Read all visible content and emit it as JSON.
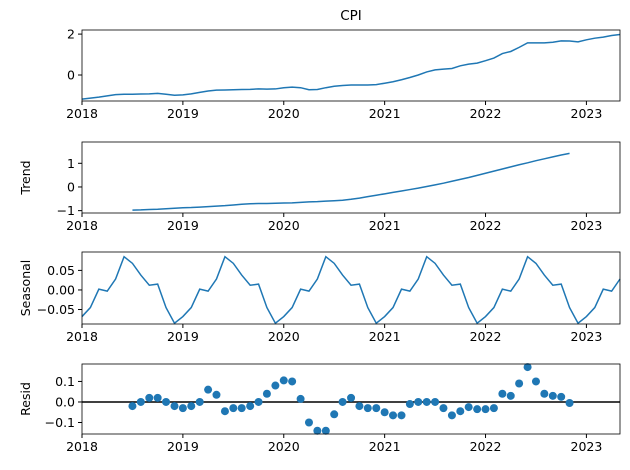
{
  "chart_data": [
    {
      "type": "line",
      "title": "CPI",
      "color": "#1f77b4",
      "x": [
        2018,
        2018.083,
        2018.167,
        2018.25,
        2018.333,
        2018.417,
        2018.5,
        2018.583,
        2018.667,
        2018.75,
        2018.833,
        2018.917,
        2019,
        2019.083,
        2019.167,
        2019.25,
        2019.333,
        2019.417,
        2019.5,
        2019.583,
        2019.667,
        2019.75,
        2019.833,
        2019.917,
        2020,
        2020.083,
        2020.167,
        2020.25,
        2020.333,
        2020.417,
        2020.5,
        2020.583,
        2020.667,
        2020.75,
        2020.833,
        2020.917,
        2021,
        2021.083,
        2021.167,
        2021.25,
        2021.333,
        2021.417,
        2021.5,
        2021.583,
        2021.667,
        2021.75,
        2021.833,
        2021.917,
        2022,
        2022.083,
        2022.167,
        2022.25,
        2022.333,
        2022.417,
        2022.5,
        2022.583,
        2022.667,
        2022.75,
        2022.833,
        2022.917,
        2023,
        2023.083,
        2023.167,
        2023.25,
        2023.333
      ],
      "values": [
        -1.18,
        -1.13,
        -1.08,
        -1.02,
        -0.96,
        -0.94,
        -0.94,
        -0.93,
        -0.92,
        -0.9,
        -0.94,
        -0.99,
        -0.97,
        -0.92,
        -0.85,
        -0.78,
        -0.74,
        -0.73,
        -0.72,
        -0.71,
        -0.7,
        -0.68,
        -0.69,
        -0.68,
        -0.62,
        -0.59,
        -0.62,
        -0.72,
        -0.71,
        -0.62,
        -0.55,
        -0.51,
        -0.49,
        -0.49,
        -0.49,
        -0.47,
        -0.4,
        -0.33,
        -0.23,
        -0.12,
        0,
        0.15,
        0.25,
        0.29,
        0.32,
        0.45,
        0.53,
        0.58,
        0.7,
        0.83,
        1.05,
        1.15,
        1.35,
        1.57,
        1.57,
        1.57,
        1.6,
        1.67,
        1.66,
        1.62,
        1.72,
        1.8,
        1.85,
        1.93,
        1.98
      ],
      "xlim": [
        2018,
        2023.333
      ],
      "xticks": [
        2018,
        2019,
        2020,
        2021,
        2022,
        2023
      ],
      "ylim": [
        -1.27,
        2.2
      ],
      "yticks": [
        0,
        2
      ]
    },
    {
      "type": "line",
      "ylabel": "Trend",
      "color": "#1f77b4",
      "x": [
        2018.5,
        2018.583,
        2018.667,
        2018.75,
        2018.833,
        2018.917,
        2019,
        2019.083,
        2019.167,
        2019.25,
        2019.333,
        2019.417,
        2019.5,
        2019.583,
        2019.667,
        2019.75,
        2019.833,
        2019.917,
        2020,
        2020.083,
        2020.167,
        2020.25,
        2020.333,
        2020.417,
        2020.5,
        2020.583,
        2020.667,
        2020.75,
        2020.833,
        2020.917,
        2021,
        2021.083,
        2021.167,
        2021.25,
        2021.333,
        2021.417,
        2021.5,
        2021.583,
        2021.667,
        2021.75,
        2021.833,
        2021.917,
        2022,
        2022.083,
        2022.167,
        2022.25,
        2022.333,
        2022.417,
        2022.5,
        2022.583,
        2022.667,
        2022.75,
        2022.833
      ],
      "values": [
        -0.98,
        -0.97,
        -0.95,
        -0.94,
        -0.92,
        -0.9,
        -0.88,
        -0.87,
        -0.85,
        -0.83,
        -0.81,
        -0.79,
        -0.76,
        -0.73,
        -0.71,
        -0.7,
        -0.7,
        -0.69,
        -0.68,
        -0.67,
        -0.65,
        -0.63,
        -0.62,
        -0.6,
        -0.58,
        -0.56,
        -0.52,
        -0.47,
        -0.41,
        -0.35,
        -0.29,
        -0.23,
        -0.17,
        -0.11,
        -0.05,
        0.02,
        0.09,
        0.16,
        0.24,
        0.32,
        0.4,
        0.49,
        0.58,
        0.67,
        0.76,
        0.85,
        0.94,
        1.02,
        1.11,
        1.19,
        1.27,
        1.35,
        1.42
      ],
      "xlim": [
        2018,
        2023.333
      ],
      "xticks": [
        2018,
        2019,
        2020,
        2021,
        2022,
        2023
      ],
      "ylim": [
        -1.1,
        1.9
      ],
      "yticks": [
        {
          "value": -1,
          "label": "−1"
        },
        0,
        1
      ]
    },
    {
      "type": "line",
      "ylabel": "Seasonal",
      "color": "#1f77b4",
      "x": [
        2018,
        2018.083,
        2018.167,
        2018.25,
        2018.333,
        2018.417,
        2018.5,
        2018.583,
        2018.667,
        2018.75,
        2018.833,
        2018.917,
        2019,
        2019.083,
        2019.167,
        2019.25,
        2019.333,
        2019.417,
        2019.5,
        2019.583,
        2019.667,
        2019.75,
        2019.833,
        2019.917,
        2020,
        2020.083,
        2020.167,
        2020.25,
        2020.333,
        2020.417,
        2020.5,
        2020.583,
        2020.667,
        2020.75,
        2020.833,
        2020.917,
        2021,
        2021.083,
        2021.167,
        2021.25,
        2021.333,
        2021.417,
        2021.5,
        2021.583,
        2021.667,
        2021.75,
        2021.833,
        2021.917,
        2022,
        2022.083,
        2022.167,
        2022.25,
        2022.333,
        2022.417,
        2022.5,
        2022.583,
        2022.667,
        2022.75,
        2022.833,
        2022.917,
        2023,
        2023.083,
        2023.167,
        2023.25,
        2023.333
      ],
      "values": [
        -0.068,
        -0.045,
        0.002,
        -0.003,
        0.028,
        0.085,
        0.068,
        0.038,
        0.012,
        0.015,
        -0.045,
        -0.085,
        -0.068,
        -0.045,
        0.002,
        -0.003,
        0.028,
        0.085,
        0.068,
        0.038,
        0.012,
        0.015,
        -0.045,
        -0.085,
        -0.068,
        -0.045,
        0.002,
        -0.003,
        0.028,
        0.085,
        0.068,
        0.038,
        0.012,
        0.015,
        -0.045,
        -0.085,
        -0.068,
        -0.045,
        0.002,
        -0.003,
        0.028,
        0.085,
        0.068,
        0.038,
        0.012,
        0.015,
        -0.045,
        -0.085,
        -0.068,
        -0.045,
        0.002,
        -0.003,
        0.028,
        0.085,
        0.068,
        0.038,
        0.012,
        0.015,
        -0.045,
        -0.085,
        -0.068,
        -0.045,
        0.002,
        -0.003,
        0.028
      ],
      "xlim": [
        2018,
        2023.333
      ],
      "xticks": [
        2018,
        2019,
        2020,
        2021,
        2022,
        2023
      ],
      "ylim": [
        -0.087,
        0.097
      ],
      "yticks": [
        {
          "value": -0.05,
          "label": "−0.05"
        },
        {
          "value": 0,
          "label": "0.00"
        },
        0.05
      ]
    },
    {
      "type": "scatter",
      "ylabel": "Resid",
      "color": "#1f77b4",
      "x": [
        2018.5,
        2018.583,
        2018.667,
        2018.75,
        2018.833,
        2018.917,
        2019,
        2019.083,
        2019.167,
        2019.25,
        2019.333,
        2019.417,
        2019.5,
        2019.583,
        2019.667,
        2019.75,
        2019.833,
        2019.917,
        2020,
        2020.083,
        2020.167,
        2020.25,
        2020.333,
        2020.417,
        2020.5,
        2020.583,
        2020.667,
        2020.75,
        2020.833,
        2020.917,
        2021,
        2021.083,
        2021.167,
        2021.25,
        2021.333,
        2021.417,
        2021.5,
        2021.583,
        2021.667,
        2021.75,
        2021.833,
        2021.917,
        2022,
        2022.083,
        2022.167,
        2022.25,
        2022.333,
        2022.417,
        2022.5,
        2022.583,
        2022.667,
        2022.75,
        2022.833
      ],
      "values": [
        -0.02,
        0,
        0.02,
        0.02,
        0,
        -0.02,
        -0.03,
        -0.02,
        0,
        0.06,
        0.035,
        -0.045,
        -0.03,
        -0.03,
        -0.02,
        0,
        0.04,
        0.08,
        0.105,
        0.1,
        0.015,
        -0.1,
        -0.14,
        -0.14,
        -0.06,
        0,
        0.02,
        -0.02,
        -0.03,
        -0.03,
        -0.05,
        -0.065,
        -0.065,
        -0.01,
        0,
        0,
        0,
        -0.03,
        -0.065,
        -0.045,
        -0.025,
        -0.035,
        -0.035,
        -0.03,
        0.04,
        0.03,
        0.09,
        0.17,
        0.1,
        0.04,
        0.03,
        0.025,
        -0.005
      ],
      "xlim": [
        2018,
        2023.333
      ],
      "xticks": [
        2018,
        2019,
        2020,
        2021,
        2022,
        2023
      ],
      "ylim": [
        -0.156,
        0.185
      ],
      "yticks": [
        {
          "value": -0.1,
          "label": "−0.1"
        },
        {
          "value": 0,
          "label": "0.0"
        },
        0.1
      ]
    }
  ]
}
